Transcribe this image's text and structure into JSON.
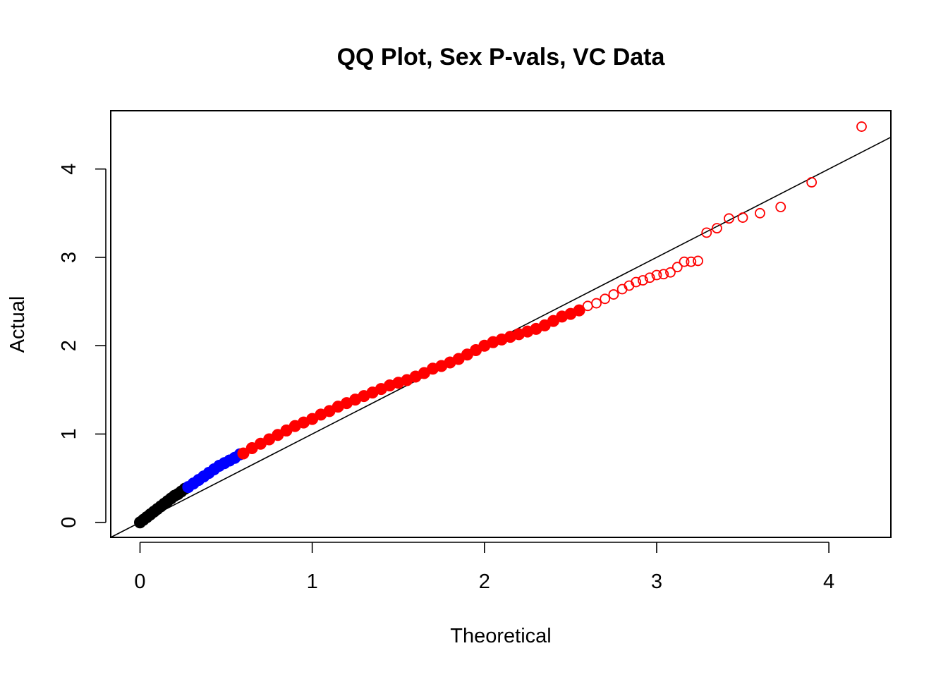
{
  "chart_data": {
    "type": "scatter",
    "title": "QQ Plot, Sex P-vals, VC Data",
    "xlabel": "Theoretical",
    "ylabel": "Actual",
    "xlim": [
      -0.17,
      4.36
    ],
    "ylim": [
      -0.17,
      4.66
    ],
    "xticks": [
      "0",
      "1",
      "2",
      "3",
      "4"
    ],
    "yticks": [
      "0",
      "1",
      "2",
      "3",
      "4"
    ],
    "grid": false,
    "legend": "none",
    "reference_line": {
      "intercept": 0,
      "slope": 1,
      "color": "#000000"
    },
    "series": [
      {
        "color": "#000000",
        "marker": "filled-circle",
        "x": [
          0.0,
          0.02,
          0.04,
          0.06,
          0.08,
          0.1,
          0.12,
          0.14,
          0.16,
          0.18,
          0.2,
          0.22,
          0.24,
          0.26
        ],
        "y": [
          0.0,
          0.03,
          0.06,
          0.09,
          0.12,
          0.15,
          0.18,
          0.21,
          0.24,
          0.27,
          0.3,
          0.32,
          0.35,
          0.38
        ]
      },
      {
        "color": "#0000ff",
        "marker": "filled-circle",
        "x": [
          0.28,
          0.31,
          0.34,
          0.37,
          0.4,
          0.43,
          0.46,
          0.49,
          0.52,
          0.55,
          0.58
        ],
        "y": [
          0.4,
          0.44,
          0.48,
          0.52,
          0.56,
          0.6,
          0.64,
          0.67,
          0.7,
          0.73,
          0.77
        ]
      },
      {
        "color": "#ff0000",
        "marker": "filled-circle",
        "x": [
          0.6,
          0.65,
          0.7,
          0.75,
          0.8,
          0.85,
          0.9,
          0.95,
          1.0,
          1.05,
          1.1,
          1.15,
          1.2,
          1.25,
          1.3,
          1.35,
          1.4,
          1.45,
          1.5,
          1.55,
          1.6,
          1.65,
          1.7,
          1.75,
          1.8,
          1.85,
          1.9,
          1.95,
          2.0,
          2.05,
          2.1,
          2.15,
          2.2,
          2.25,
          2.3,
          2.35,
          2.4,
          2.45,
          2.5,
          2.55
        ],
        "y": [
          0.78,
          0.84,
          0.89,
          0.94,
          0.99,
          1.04,
          1.09,
          1.13,
          1.17,
          1.22,
          1.26,
          1.31,
          1.35,
          1.39,
          1.43,
          1.47,
          1.51,
          1.55,
          1.58,
          1.61,
          1.65,
          1.69,
          1.74,
          1.77,
          1.81,
          1.85,
          1.9,
          1.95,
          2.0,
          2.04,
          2.07,
          2.1,
          2.13,
          2.16,
          2.19,
          2.23,
          2.28,
          2.33,
          2.36,
          2.4
        ]
      },
      {
        "color": "#ff0000",
        "marker": "open-circle",
        "x": [
          2.6,
          2.65,
          2.7,
          2.75,
          2.8,
          2.84,
          2.88,
          2.92,
          2.96,
          3.0,
          3.04,
          3.08,
          3.12,
          3.16,
          3.2,
          3.24,
          3.29,
          3.35,
          3.42,
          3.5,
          3.6,
          3.72,
          3.9,
          4.19
        ],
        "y": [
          2.45,
          2.48,
          2.53,
          2.58,
          2.64,
          2.68,
          2.72,
          2.74,
          2.77,
          2.8,
          2.81,
          2.83,
          2.89,
          2.95,
          2.95,
          2.96,
          3.28,
          3.33,
          3.44,
          3.45,
          3.5,
          3.57,
          3.85,
          4.48
        ]
      }
    ]
  }
}
